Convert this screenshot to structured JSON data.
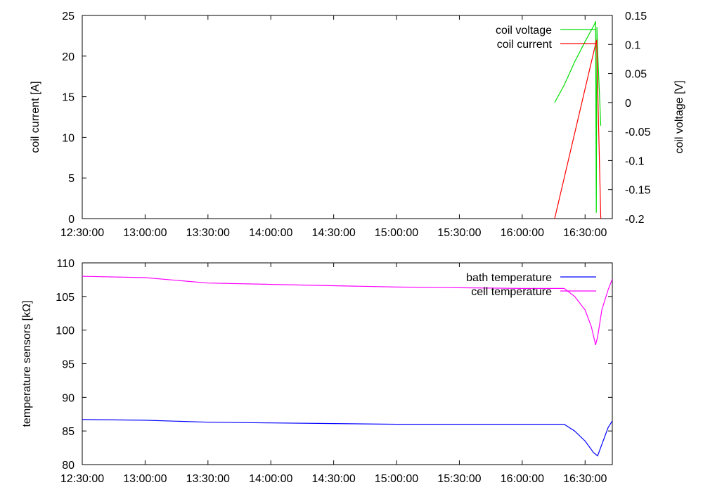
{
  "chart_data": [
    {
      "type": "line",
      "x_ticks": [
        "12:30:00",
        "13:00:00",
        "13:30:00",
        "14:00:00",
        "14:30:00",
        "15:00:00",
        "15:30:00",
        "16:00:00",
        "16:30:00"
      ],
      "xlim": [
        "12:30:00",
        "16:43:00"
      ],
      "ylabel": "coil current [A]",
      "ylim": [
        0,
        25
      ],
      "y_ticks": [
        "0",
        "5",
        "10",
        "15",
        "20",
        "25"
      ],
      "y2label": "coil voltage [V]",
      "y2lim": [
        -0.2,
        0.15
      ],
      "y2_ticks": [
        "-0.2",
        "-0.15",
        "-0.1",
        "-0.05",
        "0",
        "0.05",
        "0.1",
        "0.15"
      ],
      "legend_position": "top-right",
      "series": [
        {
          "name": "coil voltage",
          "axis": "y2",
          "color": "#00dd00",
          "x": [
            "16:15:30",
            "16:20:00",
            "16:25:00",
            "16:30:00",
            "16:34:30",
            "16:35:00",
            "16:35:20",
            "16:35:40",
            "16:36:00",
            "16:37:30"
          ],
          "values": [
            0.0,
            0.03,
            0.07,
            0.105,
            0.135,
            0.14,
            -0.19,
            0.13,
            0.09,
            -0.04
          ]
        },
        {
          "name": "coil current",
          "axis": "y",
          "color": "#ff0000",
          "x": [
            "16:15:30",
            "16:35:30",
            "16:37:30"
          ],
          "values": [
            0,
            22,
            0
          ]
        }
      ]
    },
    {
      "type": "line",
      "x_ticks": [
        "12:30:00",
        "13:00:00",
        "13:30:00",
        "14:00:00",
        "14:30:00",
        "15:00:00",
        "15:30:00",
        "16:00:00",
        "16:30:00"
      ],
      "xlim": [
        "12:30:00",
        "16:43:00"
      ],
      "ylabel": "temperature sensors [kΩ]",
      "ylim": [
        80,
        110
      ],
      "y_ticks": [
        "80",
        "85",
        "90",
        "95",
        "100",
        "105",
        "110"
      ],
      "legend_position": "top-right",
      "series": [
        {
          "name": "bath temperature",
          "color": "#0000ff",
          "x": [
            "12:30:00",
            "13:00:00",
            "13:30:00",
            "14:00:00",
            "14:30:00",
            "15:00:00",
            "15:30:00",
            "16:00:00",
            "16:20:00",
            "16:25:00",
            "16:30:00",
            "16:34:00",
            "16:36:00",
            "16:38:00",
            "16:41:00",
            "16:43:00"
          ],
          "values": [
            86.7,
            86.6,
            86.3,
            86.2,
            86.1,
            86.0,
            86.0,
            86.0,
            86.0,
            85.0,
            83.5,
            81.8,
            81.3,
            83.0,
            85.5,
            86.5
          ]
        },
        {
          "name": "cell temperature",
          "color": "#ff00ff",
          "x": [
            "12:30:00",
            "13:00:00",
            "13:30:00",
            "14:00:00",
            "14:30:00",
            "15:00:00",
            "15:30:00",
            "16:00:00",
            "16:20:00",
            "16:25:00",
            "16:30:00",
            "16:33:00",
            "16:35:00",
            "16:36:00",
            "16:38:00",
            "16:41:00",
            "16:43:00"
          ],
          "values": [
            108.0,
            107.8,
            107.0,
            106.8,
            106.6,
            106.4,
            106.3,
            106.2,
            106.2,
            105.0,
            103.0,
            100.5,
            97.8,
            99.0,
            103.0,
            106.0,
            107.6
          ]
        }
      ]
    }
  ]
}
